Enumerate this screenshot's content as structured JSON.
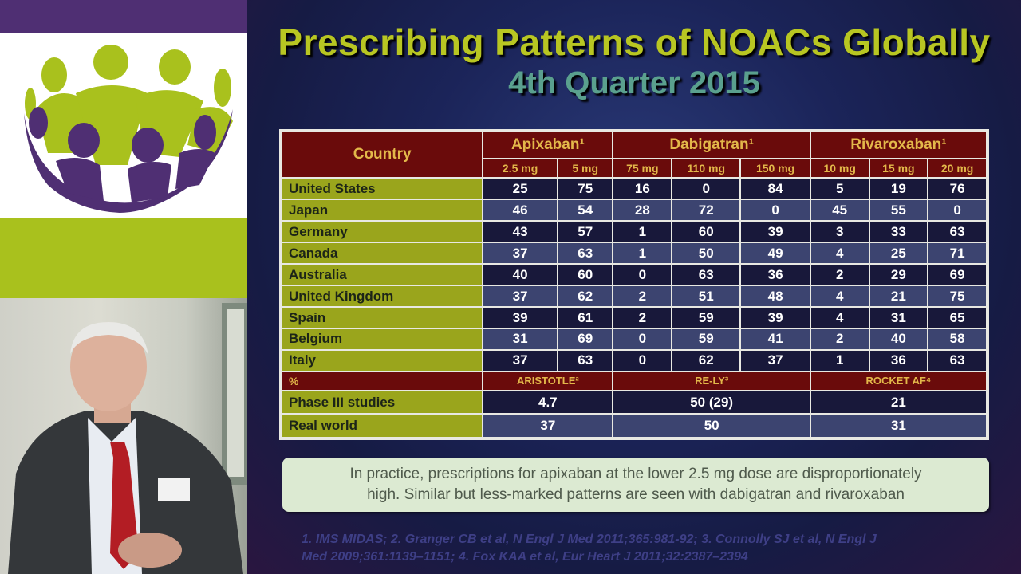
{
  "slide": {
    "title": "Prescribing Patterns of NOACs Globally",
    "subtitle": "4th Quarter 2015",
    "table": {
      "country_header": "Country",
      "drugs": [
        {
          "name": "Apixaban¹",
          "doses": [
            "2.5 mg",
            "5 mg"
          ]
        },
        {
          "name": "Dabigatran¹",
          "doses": [
            "75 mg",
            "110 mg",
            "150 mg"
          ]
        },
        {
          "name": "Rivaroxaban¹",
          "doses": [
            "10 mg",
            "15 mg",
            "20 mg"
          ]
        }
      ],
      "rows": [
        {
          "country": "United States",
          "values": [
            "25",
            "75",
            "16",
            "0",
            "84",
            "5",
            "19",
            "76"
          ]
        },
        {
          "country": "Japan",
          "values": [
            "46",
            "54",
            "28",
            "72",
            "0",
            "45",
            "55",
            "0"
          ]
        },
        {
          "country": "Germany",
          "values": [
            "43",
            "57",
            "1",
            "60",
            "39",
            "3",
            "33",
            "63"
          ]
        },
        {
          "country": "Canada",
          "values": [
            "37",
            "63",
            "1",
            "50",
            "49",
            "4",
            "25",
            "71"
          ]
        },
        {
          "country": "Australia",
          "values": [
            "40",
            "60",
            "0",
            "63",
            "36",
            "2",
            "29",
            "69"
          ]
        },
        {
          "country": "United Kingdom",
          "values": [
            "37",
            "62",
            "2",
            "51",
            "48",
            "4",
            "21",
            "75"
          ]
        },
        {
          "country": "Spain",
          "values": [
            "39",
            "61",
            "2",
            "59",
            "39",
            "4",
            "31",
            "65"
          ]
        },
        {
          "country": "Belgium",
          "values": [
            "31",
            "69",
            "0",
            "59",
            "41",
            "2",
            "40",
            "58"
          ]
        },
        {
          "country": "Italy",
          "values": [
            "37",
            "63",
            "0",
            "62",
            "37",
            "1",
            "36",
            "63"
          ]
        }
      ],
      "percent_label": "%",
      "studies": [
        "ARISTOTLE²",
        "RE-LY³",
        "ROCKET AF⁴"
      ],
      "phase_rows": [
        {
          "label": "Phase III studies",
          "values": [
            "4.7",
            "50 (29)",
            "21"
          ]
        },
        {
          "label": "Real world",
          "values": [
            "37",
            "50",
            "31"
          ]
        }
      ]
    },
    "note_line1": "In practice, prescriptions for apixaban at the lower 2.5 mg dose are disproportionately",
    "note_line2": "high. Similar but less-marked patterns are seen with dabigatran and rivaroxaban",
    "references_line1": "1. IMS MIDAS; 2. Granger CB et al, N Engl J Med 2011;365:981-92; 3. Connolly SJ et al, N Engl J",
    "references_line2": "Med 2009;361:1139–1151; 4. Fox KAA et al, Eur Heart J 2011;32:2387–2394"
  },
  "colors": {
    "purple": "#4f2f73",
    "green": "#a9c11d",
    "title": "#b8c622",
    "subtitle": "#5aa08e",
    "header_bg": "#6a0b0b",
    "header_text": "#e3b84a"
  },
  "icons": [
    "people-circle-logo"
  ]
}
